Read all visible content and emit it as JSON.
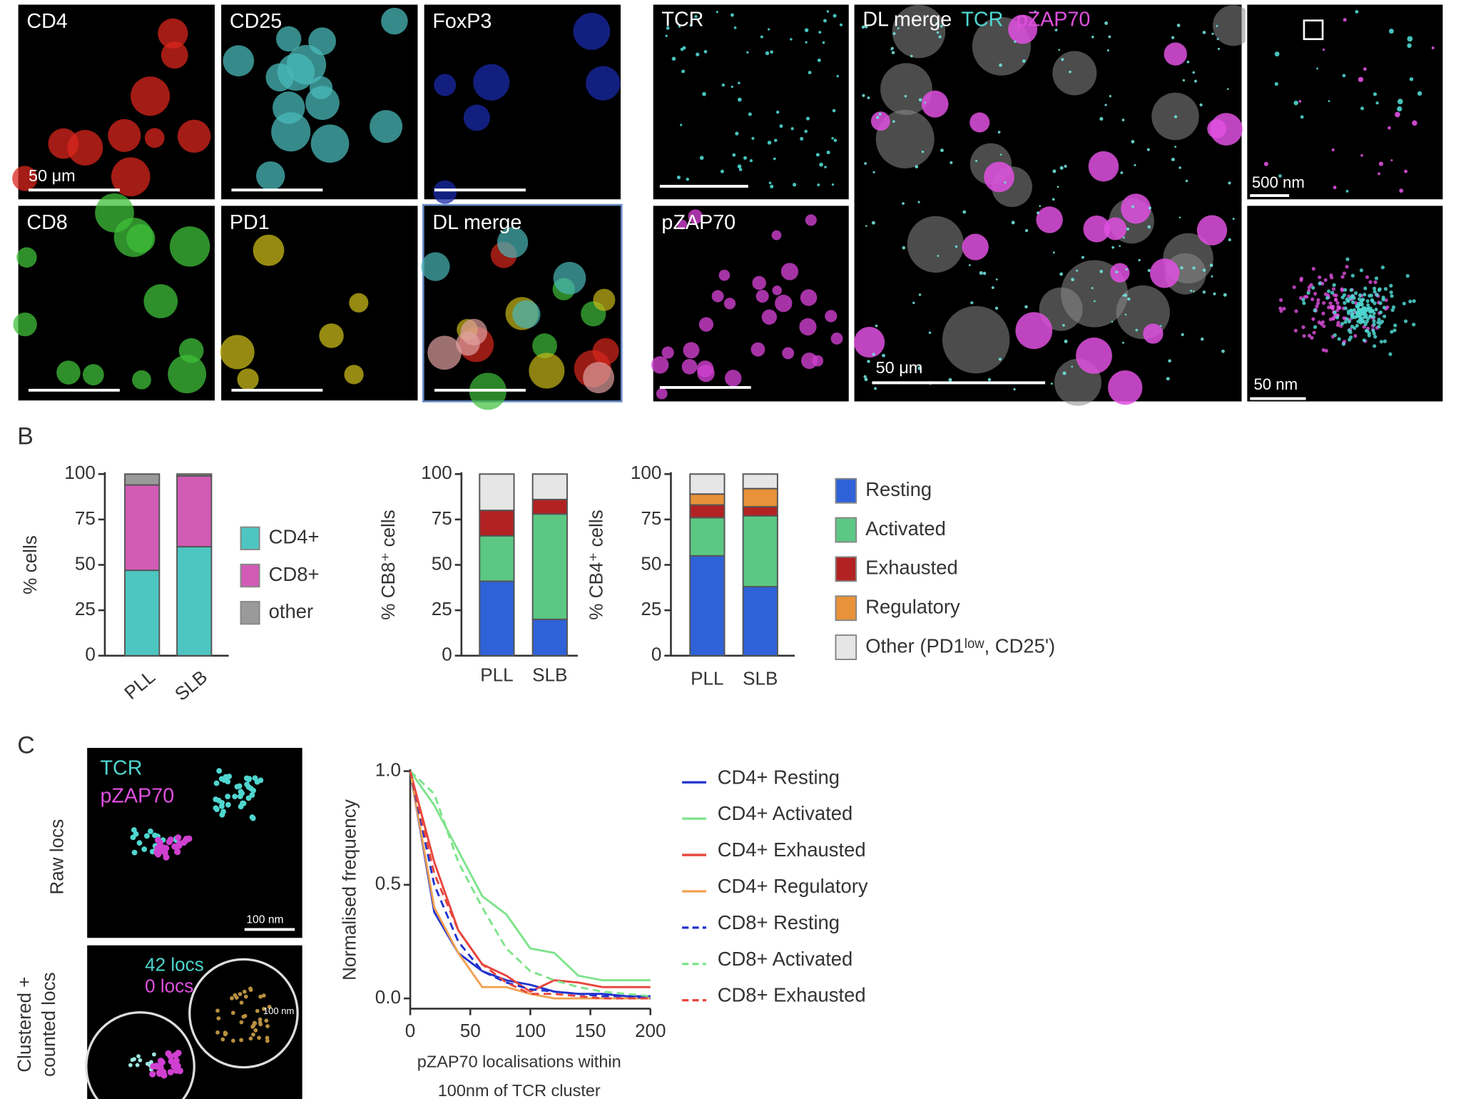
{
  "panel_labels": [
    "B",
    "C"
  ],
  "figure_a": {
    "labels": [
      "CD4",
      "CD25",
      "FoxP3",
      "CD8",
      "PD1",
      "DL merge",
      "TCR",
      "pZAP70"
    ],
    "merge_title": "DL merge",
    "merge_tcr": "TCR",
    "merge_pzap": "pZAP70",
    "scale_labels": [
      "50 μm",
      "50 μm",
      "500 nm",
      "50 nm"
    ]
  },
  "figure_c": {
    "channels": [
      "TCR",
      "pZAP70"
    ],
    "row_labels": [
      [
        "Raw locs"
      ],
      [
        "Clustered +",
        "counted locs"
      ]
    ],
    "scale_label": "100 nm",
    "counts": [
      "42 locs",
      "0 locs"
    ],
    "radius_label": "100 nm"
  },
  "chart_data": [
    {
      "type": "stacked_bar",
      "ylabel": "% cells",
      "categories": [
        "PLL",
        "SLB"
      ],
      "series": [
        {
          "name": "CD4+",
          "color": "#4dc6c2",
          "values": [
            47,
            60
          ]
        },
        {
          "name": "CD8+",
          "color": "#d15bb5",
          "values": [
            47,
            39
          ]
        },
        {
          "name": "other",
          "color": "#9a9a9a",
          "values": [
            6,
            1
          ]
        }
      ],
      "ylim": [
        0,
        100
      ],
      "yticks": [
        0,
        25,
        50,
        75,
        100
      ],
      "legend": "right",
      "rotate_xlabels": true
    },
    {
      "type": "stacked_bar",
      "ylabel": "% CB8⁺ cells",
      "categories": [
        "PLL",
        "SLB"
      ],
      "series": [
        {
          "color": "#2f62d8",
          "values": [
            41,
            20
          ]
        },
        {
          "color": "#5cc883",
          "values": [
            25,
            58
          ]
        },
        {
          "color": "#b22222",
          "values": [
            14,
            8
          ]
        },
        {
          "color": "#e8923a",
          "values": [
            0,
            0
          ]
        },
        {
          "color": "#e6e6e6",
          "values": [
            20,
            14
          ]
        }
      ],
      "ylim": [
        0,
        100
      ],
      "yticks": [
        0,
        25,
        50,
        75,
        100
      ],
      "rotate_xlabels": false
    },
    {
      "type": "stacked_bar",
      "ylabel": "% CB4⁺ cells",
      "categories": [
        "PLL",
        "SLB"
      ],
      "series": [
        {
          "name": "Resting",
          "color": "#2f62d8",
          "values": [
            55,
            38
          ]
        },
        {
          "name": "Activated",
          "color": "#5cc883",
          "values": [
            21,
            39
          ]
        },
        {
          "name": "Exhausted",
          "color": "#b22222",
          "values": [
            7,
            5
          ]
        },
        {
          "name": "Regulatory",
          "color": "#e8923a",
          "values": [
            6,
            10
          ]
        },
        {
          "name": "Other (PD1ˡᵒʷ, CD25')",
          "color": "#e6e6e6",
          "values": [
            11,
            8
          ]
        }
      ],
      "ylim": [
        0,
        100
      ],
      "yticks": [
        0,
        25,
        50,
        75,
        100
      ],
      "legend": "right",
      "rotate_xlabels": false
    },
    {
      "type": "line",
      "ylabel": "Normalised frequency",
      "xlabel": [
        "pZAP70 localisations within",
        "100nm of TCR cluster"
      ],
      "x": [
        0,
        20,
        40,
        60,
        80,
        100,
        120,
        140,
        160,
        180,
        200
      ],
      "series": [
        {
          "name": "CD4+ Resting",
          "color": "#2233cc",
          "dashed": false,
          "values": [
            1.0,
            0.38,
            0.2,
            0.12,
            0.08,
            0.06,
            0.03,
            0.02,
            0.02,
            0.01,
            0.01
          ]
        },
        {
          "name": "CD4+ Activated",
          "color": "#7de38a",
          "dashed": false,
          "values": [
            1.0,
            0.85,
            0.65,
            0.45,
            0.37,
            0.22,
            0.2,
            0.1,
            0.08,
            0.08,
            0.08
          ]
        },
        {
          "name": "CD4+ Exhausted",
          "color": "#e8453c",
          "dashed": false,
          "values": [
            1.0,
            0.6,
            0.3,
            0.15,
            0.1,
            0.03,
            0.08,
            0.07,
            0.05,
            0.05,
            0.05
          ]
        },
        {
          "name": "CD4+ Regulatory",
          "color": "#f0a050",
          "dashed": false,
          "values": [
            1.0,
            0.4,
            0.2,
            0.05,
            0.05,
            0.02,
            0.0,
            0.0,
            0.0,
            0.0,
            0.0
          ]
        },
        {
          "name": "CD8+ Resting",
          "color": "#2233cc",
          "dashed": true,
          "values": [
            1.0,
            0.5,
            0.25,
            0.12,
            0.07,
            0.04,
            0.03,
            0.02,
            0.01,
            0.01,
            0.0
          ]
        },
        {
          "name": "CD8+ Activated",
          "color": "#7de38a",
          "dashed": true,
          "values": [
            1.0,
            0.9,
            0.6,
            0.4,
            0.22,
            0.12,
            0.08,
            0.05,
            0.03,
            0.02,
            0.01
          ]
        },
        {
          "name": "CD8+ Exhausted",
          "color": "#e8453c",
          "dashed": true,
          "values": [
            1.0,
            0.55,
            0.3,
            0.15,
            0.07,
            0.02,
            0.02,
            0.01,
            0.0,
            0.0,
            0.0
          ]
        }
      ],
      "xlim": [
        0,
        200
      ],
      "xticks": [
        0,
        50,
        100,
        150,
        200
      ],
      "ylim": [
        -0.045,
        1.0
      ],
      "yticks": [
        {
          "value": 0,
          "label": "0.0"
        },
        0.5,
        {
          "value": 1,
          "label": "1.0"
        }
      ],
      "legend": "right"
    }
  ]
}
